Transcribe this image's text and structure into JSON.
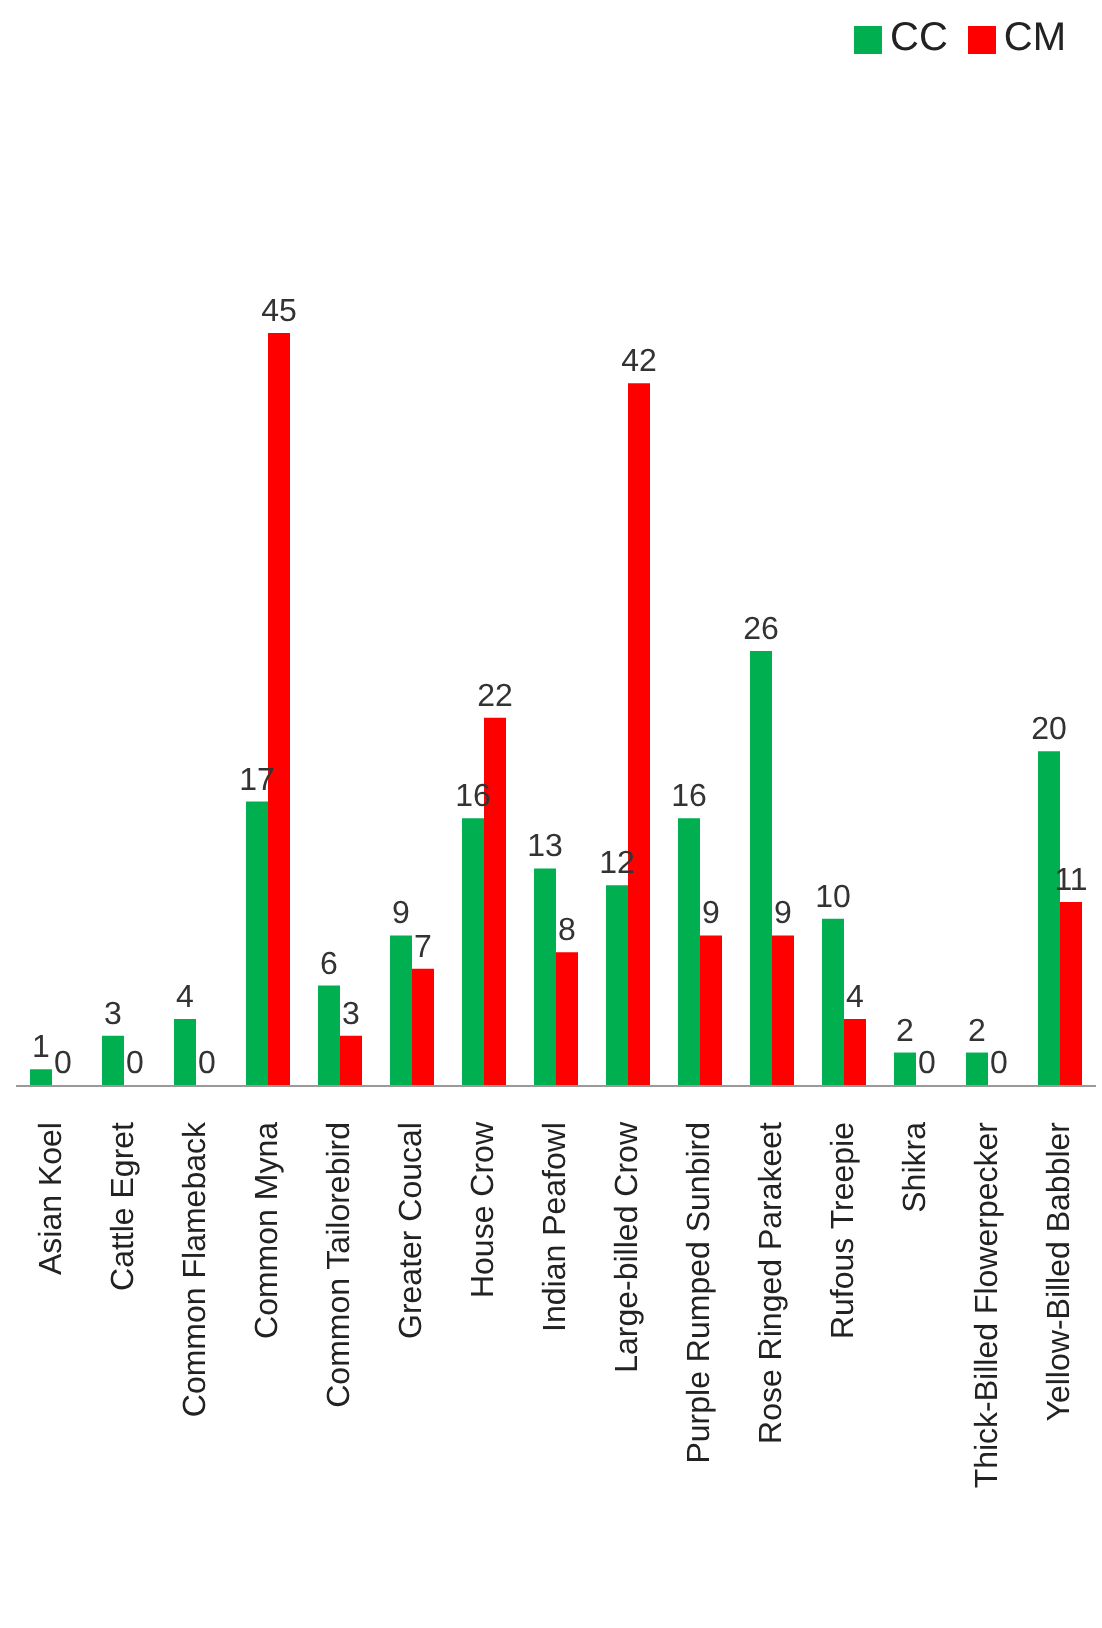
{
  "chart_data": {
    "type": "bar",
    "categories": [
      "Asian Koel",
      "Cattle Egret",
      "Common Flameback",
      "Common Myna",
      "Common Tailorebird",
      "Greater Coucal",
      "House Crow",
      "Indian Peafowl",
      "Large-billed Crow",
      "Purple Rumped Sunbird",
      "Rose Ringed Parakeet",
      "Rufous Treepie",
      "Shikra",
      "Thick-Billed Flowerpecker",
      "Yellow-Billed Babbler"
    ],
    "series": [
      {
        "name": "CC",
        "color": "#00b050",
        "values": [
          1,
          3,
          4,
          17,
          6,
          9,
          16,
          13,
          12,
          16,
          26,
          10,
          2,
          2,
          20
        ]
      },
      {
        "name": "CM",
        "color": "#ff0000",
        "values": [
          0,
          0,
          0,
          45,
          3,
          7,
          22,
          8,
          42,
          9,
          9,
          4,
          0,
          0,
          11
        ]
      }
    ],
    "data_labels": true,
    "legend": "top right"
  }
}
